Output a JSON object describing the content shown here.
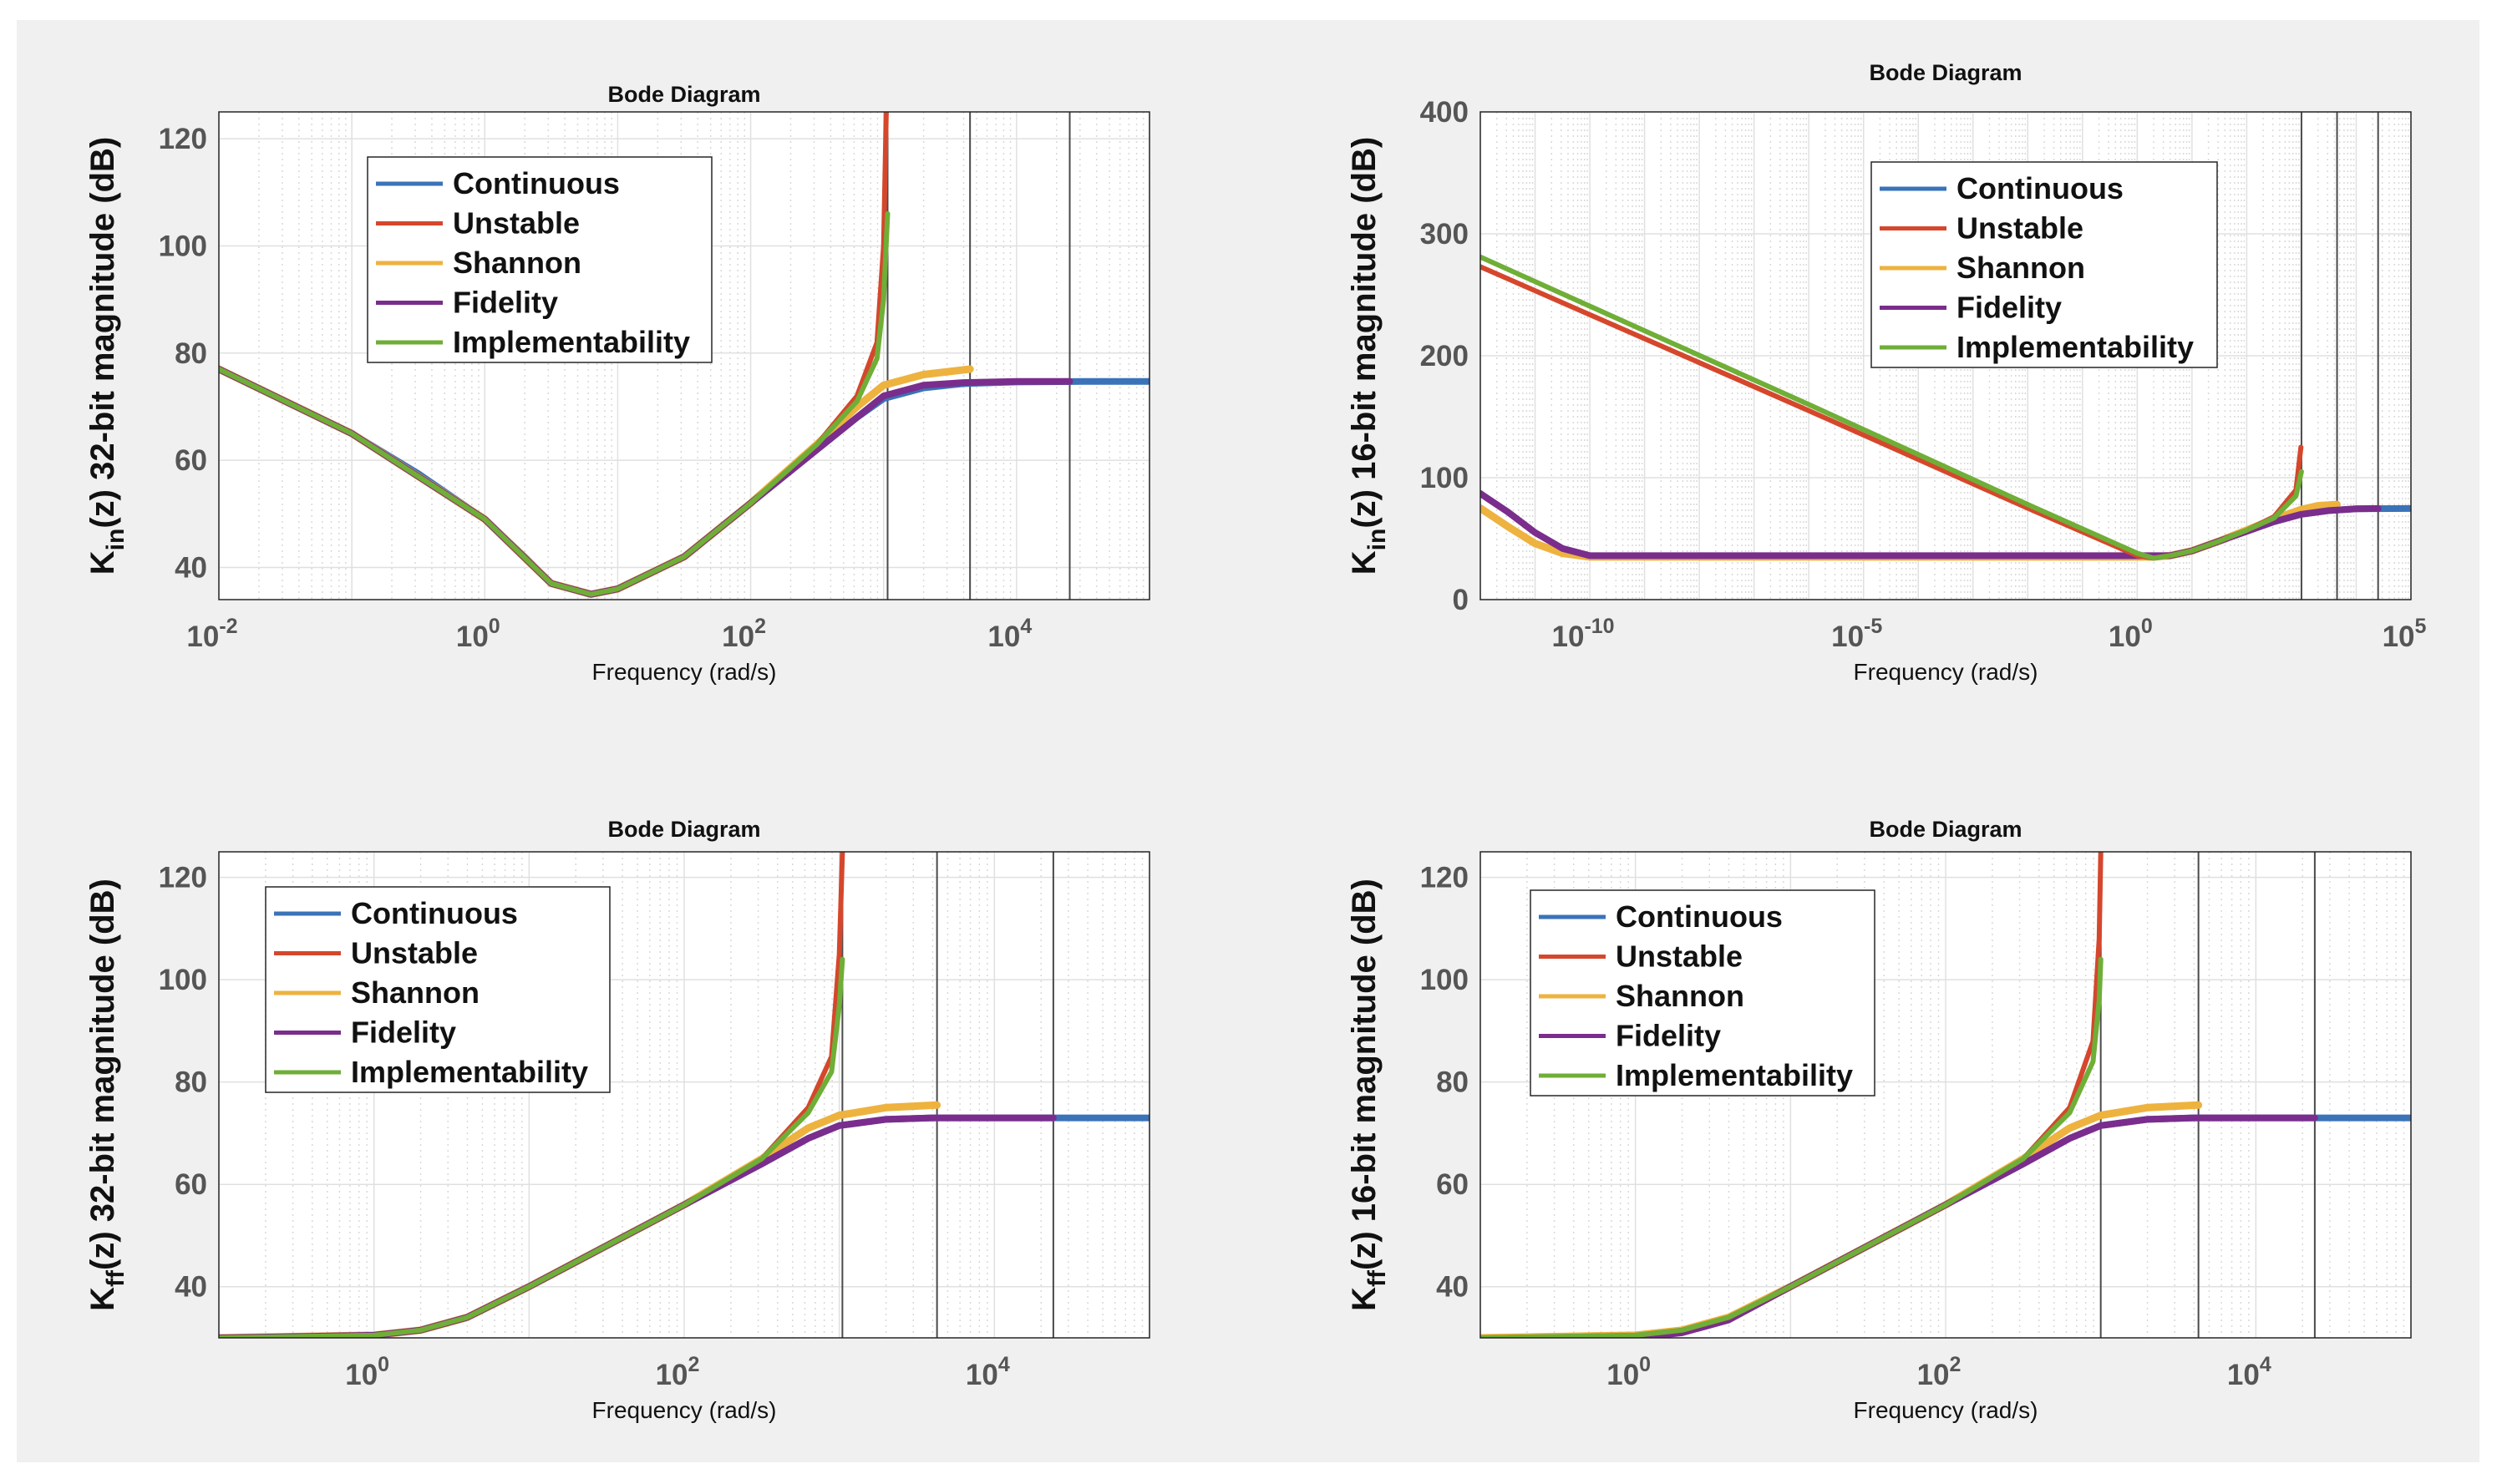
{
  "colors": {
    "Continuous": "#3a73b8",
    "Unstable": "#d5472c",
    "Shannon": "#eeb23f",
    "Fidelity": "#7a2d8c",
    "Implementability": "#6fae37"
  },
  "chart_data": [
    {
      "type": "line",
      "title": "Bode Diagram",
      "xlabel": "Frequency  (rad/s)",
      "ylabel_parts": [
        "K",
        "in",
        "(z) 32-bit magnitude (dB)"
      ],
      "xscale": "log",
      "xlim": [
        -2,
        5
      ],
      "ylim": [
        34,
        125
      ],
      "yticks": [
        40,
        60,
        80,
        100,
        120
      ],
      "xticks": [
        -2,
        0,
        2,
        4
      ],
      "xtick_labels": [
        "10",
        "10",
        "10",
        "10"
      ],
      "xtick_exps": [
        "-2",
        "0",
        "2",
        "4"
      ],
      "legend": [
        "Continuous",
        "Unstable",
        "Shannon",
        "Fidelity",
        "Implementability"
      ],
      "legend_position": "upper-left",
      "vlines": [
        3.03,
        3.65,
        4.4
      ],
      "series": [
        {
          "name": "Continuous",
          "x": [
            -2,
            -1.5,
            -1,
            -0.5,
            0,
            0.3,
            0.5,
            0.8,
            1,
            1.5,
            2,
            2.5,
            2.8,
            3,
            3.3,
            3.6,
            4,
            4.5,
            5
          ],
          "y": [
            77,
            71,
            65,
            57.5,
            49,
            42,
            37,
            35,
            36,
            42,
            52,
            62,
            68,
            71.5,
            73.5,
            74.3,
            74.6,
            74.7,
            74.7
          ]
        },
        {
          "name": "Unstable",
          "x": [
            -2,
            -1,
            0,
            0.5,
            0.8,
            1,
            1.5,
            2,
            2.5,
            2.8,
            2.95,
            3.0,
            3.02
          ],
          "y": [
            77,
            65,
            49,
            37,
            35,
            36,
            42,
            52,
            63,
            72,
            82,
            100,
            125
          ]
        },
        {
          "name": "Shannon",
          "x": [
            -2,
            -1,
            0,
            0.5,
            0.8,
            1,
            1.5,
            2,
            2.5,
            2.8,
            3,
            3.3,
            3.65
          ],
          "y": [
            77,
            65,
            49,
            37,
            35,
            36,
            42,
            52,
            63,
            70,
            74,
            76,
            77
          ]
        },
        {
          "name": "Fidelity",
          "x": [
            -2,
            -1,
            0,
            0.5,
            0.8,
            1,
            1.5,
            2,
            2.5,
            2.8,
            3,
            3.3,
            3.6,
            4,
            4.4
          ],
          "y": [
            77,
            65,
            49,
            37,
            35,
            36,
            42,
            52,
            62,
            68,
            72,
            74,
            74.5,
            74.7,
            74.7
          ]
        },
        {
          "name": "Implementability",
          "x": [
            -2,
            -1,
            0,
            0.5,
            0.8,
            1,
            1.5,
            2,
            2.5,
            2.8,
            2.95,
            3.0,
            3.03
          ],
          "y": [
            77,
            65,
            49,
            37,
            35,
            36,
            42,
            52,
            63,
            71,
            79,
            90,
            106
          ]
        }
      ]
    },
    {
      "type": "line",
      "title": "Bode Diagram",
      "xlabel": "Frequency  (rad/s)",
      "ylabel_parts": [
        "K",
        "in",
        "(z) 16-bit magnitude (dB)"
      ],
      "xscale": "log",
      "xlim": [
        -12,
        5
      ],
      "ylim": [
        0,
        400
      ],
      "yticks": [
        0,
        100,
        200,
        300,
        400
      ],
      "xticks": [
        -10,
        -5,
        0,
        5
      ],
      "xtick_labels": [
        "10",
        "10",
        "10",
        "10"
      ],
      "xtick_exps": [
        "-10",
        "-5",
        "0",
        "5"
      ],
      "legend": [
        "Continuous",
        "Unstable",
        "Shannon",
        "Fidelity",
        "Implementability"
      ],
      "legend_position": "upper-right",
      "vlines": [
        3.0,
        3.65,
        4.4
      ],
      "series": [
        {
          "name": "Continuous",
          "x": [
            0.3,
            0.6,
            1,
            1.5,
            2,
            2.5,
            3,
            3.5,
            4,
            5
          ],
          "y": [
            35,
            36,
            40,
            48,
            56,
            64,
            70,
            73,
            74.5,
            74.7
          ]
        },
        {
          "name": "Unstable",
          "x": [
            -12,
            -6,
            -2,
            0,
            0.3,
            0.6,
            1,
            1.5,
            2,
            2.5,
            2.9,
            2.99
          ],
          "y": [
            273,
            155,
            75,
            36,
            34,
            36,
            40,
            48,
            57,
            68,
            90,
            125
          ]
        },
        {
          "name": "Shannon",
          "x": [
            -12,
            -11.5,
            -11,
            -10.5,
            -10,
            -6,
            -2,
            0,
            0.3,
            0.6,
            1,
            1.5,
            2,
            2.5,
            3,
            3.3,
            3.65
          ],
          "y": [
            75,
            60,
            46,
            38,
            35,
            35,
            35,
            35,
            35,
            36,
            40,
            48,
            57,
            66,
            74,
            77,
            78
          ]
        },
        {
          "name": "Fidelity",
          "x": [
            -12,
            -11.5,
            -11,
            -10.5,
            -10,
            -6,
            -2,
            0,
            0.3,
            0.6,
            1,
            1.5,
            2,
            2.5,
            3,
            3.5,
            4,
            4.4
          ],
          "y": [
            87,
            72,
            55,
            42,
            36,
            36,
            36,
            36,
            36,
            36,
            40,
            48,
            56,
            64,
            70,
            73,
            74.5,
            74.7
          ]
        },
        {
          "name": "Implementability",
          "x": [
            -12,
            -6,
            -2,
            0,
            0.3,
            0.6,
            1,
            1.5,
            2,
            2.5,
            2.9,
            3.0
          ],
          "y": [
            281,
            160,
            78,
            38,
            34,
            36,
            40,
            48,
            57,
            67,
            85,
            105
          ]
        }
      ]
    },
    {
      "type": "line",
      "title": "Bode Diagram",
      "xlabel": "Frequency  (rad/s)",
      "ylabel_parts": [
        "K",
        "ff",
        "(z) 32-bit magnitude (dB)"
      ],
      "xscale": "log",
      "xlim": [
        -1,
        5
      ],
      "ylim": [
        30,
        125
      ],
      "yticks": [
        40,
        60,
        80,
        100,
        120
      ],
      "xticks": [
        0,
        2,
        4
      ],
      "xtick_labels": [
        "10",
        "10",
        "10"
      ],
      "xtick_exps": [
        "0",
        "2",
        "4"
      ],
      "legend": [
        "Continuous",
        "Unstable",
        "Shannon",
        "Fidelity",
        "Implementability"
      ],
      "legend_position": "upper-left",
      "vlines": [
        3.02,
        3.63,
        4.38
      ],
      "series": [
        {
          "name": "Continuous",
          "x": [
            -1,
            -0.5,
            0,
            0.3,
            0.6,
            0.8,
            1,
            1.5,
            2,
            2.5,
            2.8,
            3,
            3.3,
            3.6,
            4,
            4.5,
            5
          ],
          "y": [
            30,
            30,
            30.5,
            31.5,
            34,
            37,
            40,
            48,
            56,
            64,
            69,
            71.5,
            72.7,
            73,
            73,
            73,
            73
          ]
        },
        {
          "name": "Unstable",
          "x": [
            -1,
            0,
            0.3,
            0.6,
            1,
            1.5,
            2,
            2.5,
            2.8,
            2.95,
            3.0,
            3.02
          ],
          "y": [
            30,
            30.5,
            31.5,
            34,
            40,
            48,
            56,
            65,
            75,
            85,
            105,
            125
          ]
        },
        {
          "name": "Shannon",
          "x": [
            -1,
            0,
            0.3,
            0.6,
            1,
            1.5,
            2,
            2.5,
            2.8,
            3,
            3.3,
            3.63
          ],
          "y": [
            30,
            30.5,
            31.5,
            34,
            40,
            48,
            56,
            65,
            71,
            73.5,
            75,
            75.5
          ]
        },
        {
          "name": "Fidelity",
          "x": [
            -1,
            0,
            0.3,
            0.6,
            1,
            1.5,
            2,
            2.5,
            2.8,
            3,
            3.3,
            3.6,
            4,
            4.38
          ],
          "y": [
            30,
            30.5,
            31.5,
            34,
            40,
            48,
            56,
            64,
            69,
            71.5,
            72.7,
            73,
            73,
            73
          ]
        },
        {
          "name": "Implementability",
          "x": [
            -1,
            0,
            0.3,
            0.6,
            1,
            1.5,
            2,
            2.5,
            2.8,
            2.95,
            3.0,
            3.02
          ],
          "y": [
            30,
            30.5,
            31.5,
            34,
            40,
            48,
            56,
            65,
            74,
            82,
            95,
            104
          ]
        }
      ]
    },
    {
      "type": "line",
      "title": "Bode Diagram",
      "xlabel": "Frequency  (rad/s)",
      "ylabel_parts": [
        "K",
        "ff",
        "(z) 16-bit magnitude (dB)"
      ],
      "xscale": "log",
      "xlim": [
        -1,
        5
      ],
      "ylim": [
        30,
        125
      ],
      "yticks": [
        40,
        60,
        80,
        100,
        120
      ],
      "xticks": [
        0,
        2,
        4
      ],
      "xtick_labels": [
        "10",
        "10",
        "10"
      ],
      "xtick_exps": [
        "0",
        "2",
        "4"
      ],
      "legend": [
        "Continuous",
        "Unstable",
        "Shannon",
        "Fidelity",
        "Implementability"
      ],
      "legend_position": "upper-left",
      "vlines": [
        3.0,
        3.63,
        4.38
      ],
      "series": [
        {
          "name": "Continuous",
          "x": [
            -1,
            -0.5,
            0,
            0.3,
            0.6,
            0.8,
            1,
            1.5,
            2,
            2.5,
            2.8,
            3,
            3.3,
            3.6,
            4,
            4.5,
            5
          ],
          "y": [
            30,
            30,
            30.5,
            31.5,
            34,
            37,
            40,
            48,
            56,
            64,
            69,
            71.5,
            72.7,
            73,
            73,
            73,
            73
          ]
        },
        {
          "name": "Unstable",
          "x": [
            -1,
            0,
            0.3,
            0.6,
            1,
            1.5,
            2,
            2.5,
            2.8,
            2.95,
            2.99,
            3.0
          ],
          "y": [
            30,
            30.5,
            31.5,
            34,
            40,
            48,
            56,
            65,
            75,
            88,
            108,
            125
          ]
        },
        {
          "name": "Shannon",
          "x": [
            -1,
            0,
            0.3,
            0.6,
            1,
            1.5,
            2,
            2.5,
            2.8,
            3,
            3.3,
            3.63
          ],
          "y": [
            30,
            30.5,
            31.5,
            34,
            40,
            48,
            56,
            65,
            71,
            73.5,
            75,
            75.5
          ]
        },
        {
          "name": "Fidelity",
          "x": [
            -1,
            0,
            0.3,
            0.6,
            1,
            1.5,
            2,
            2.5,
            2.8,
            3,
            3.3,
            3.6,
            4,
            4.38
          ],
          "y": [
            29.5,
            30,
            31,
            33.5,
            40,
            48,
            56,
            64,
            69,
            71.5,
            72.7,
            73,
            73,
            73
          ]
        },
        {
          "name": "Implementability",
          "x": [
            -1,
            0,
            0.3,
            0.6,
            1,
            1.5,
            2,
            2.5,
            2.8,
            2.95,
            2.99,
            3.0
          ],
          "y": [
            30,
            30.5,
            31.5,
            34,
            40,
            48,
            56,
            65,
            74,
            84,
            96,
            104
          ]
        }
      ]
    }
  ]
}
